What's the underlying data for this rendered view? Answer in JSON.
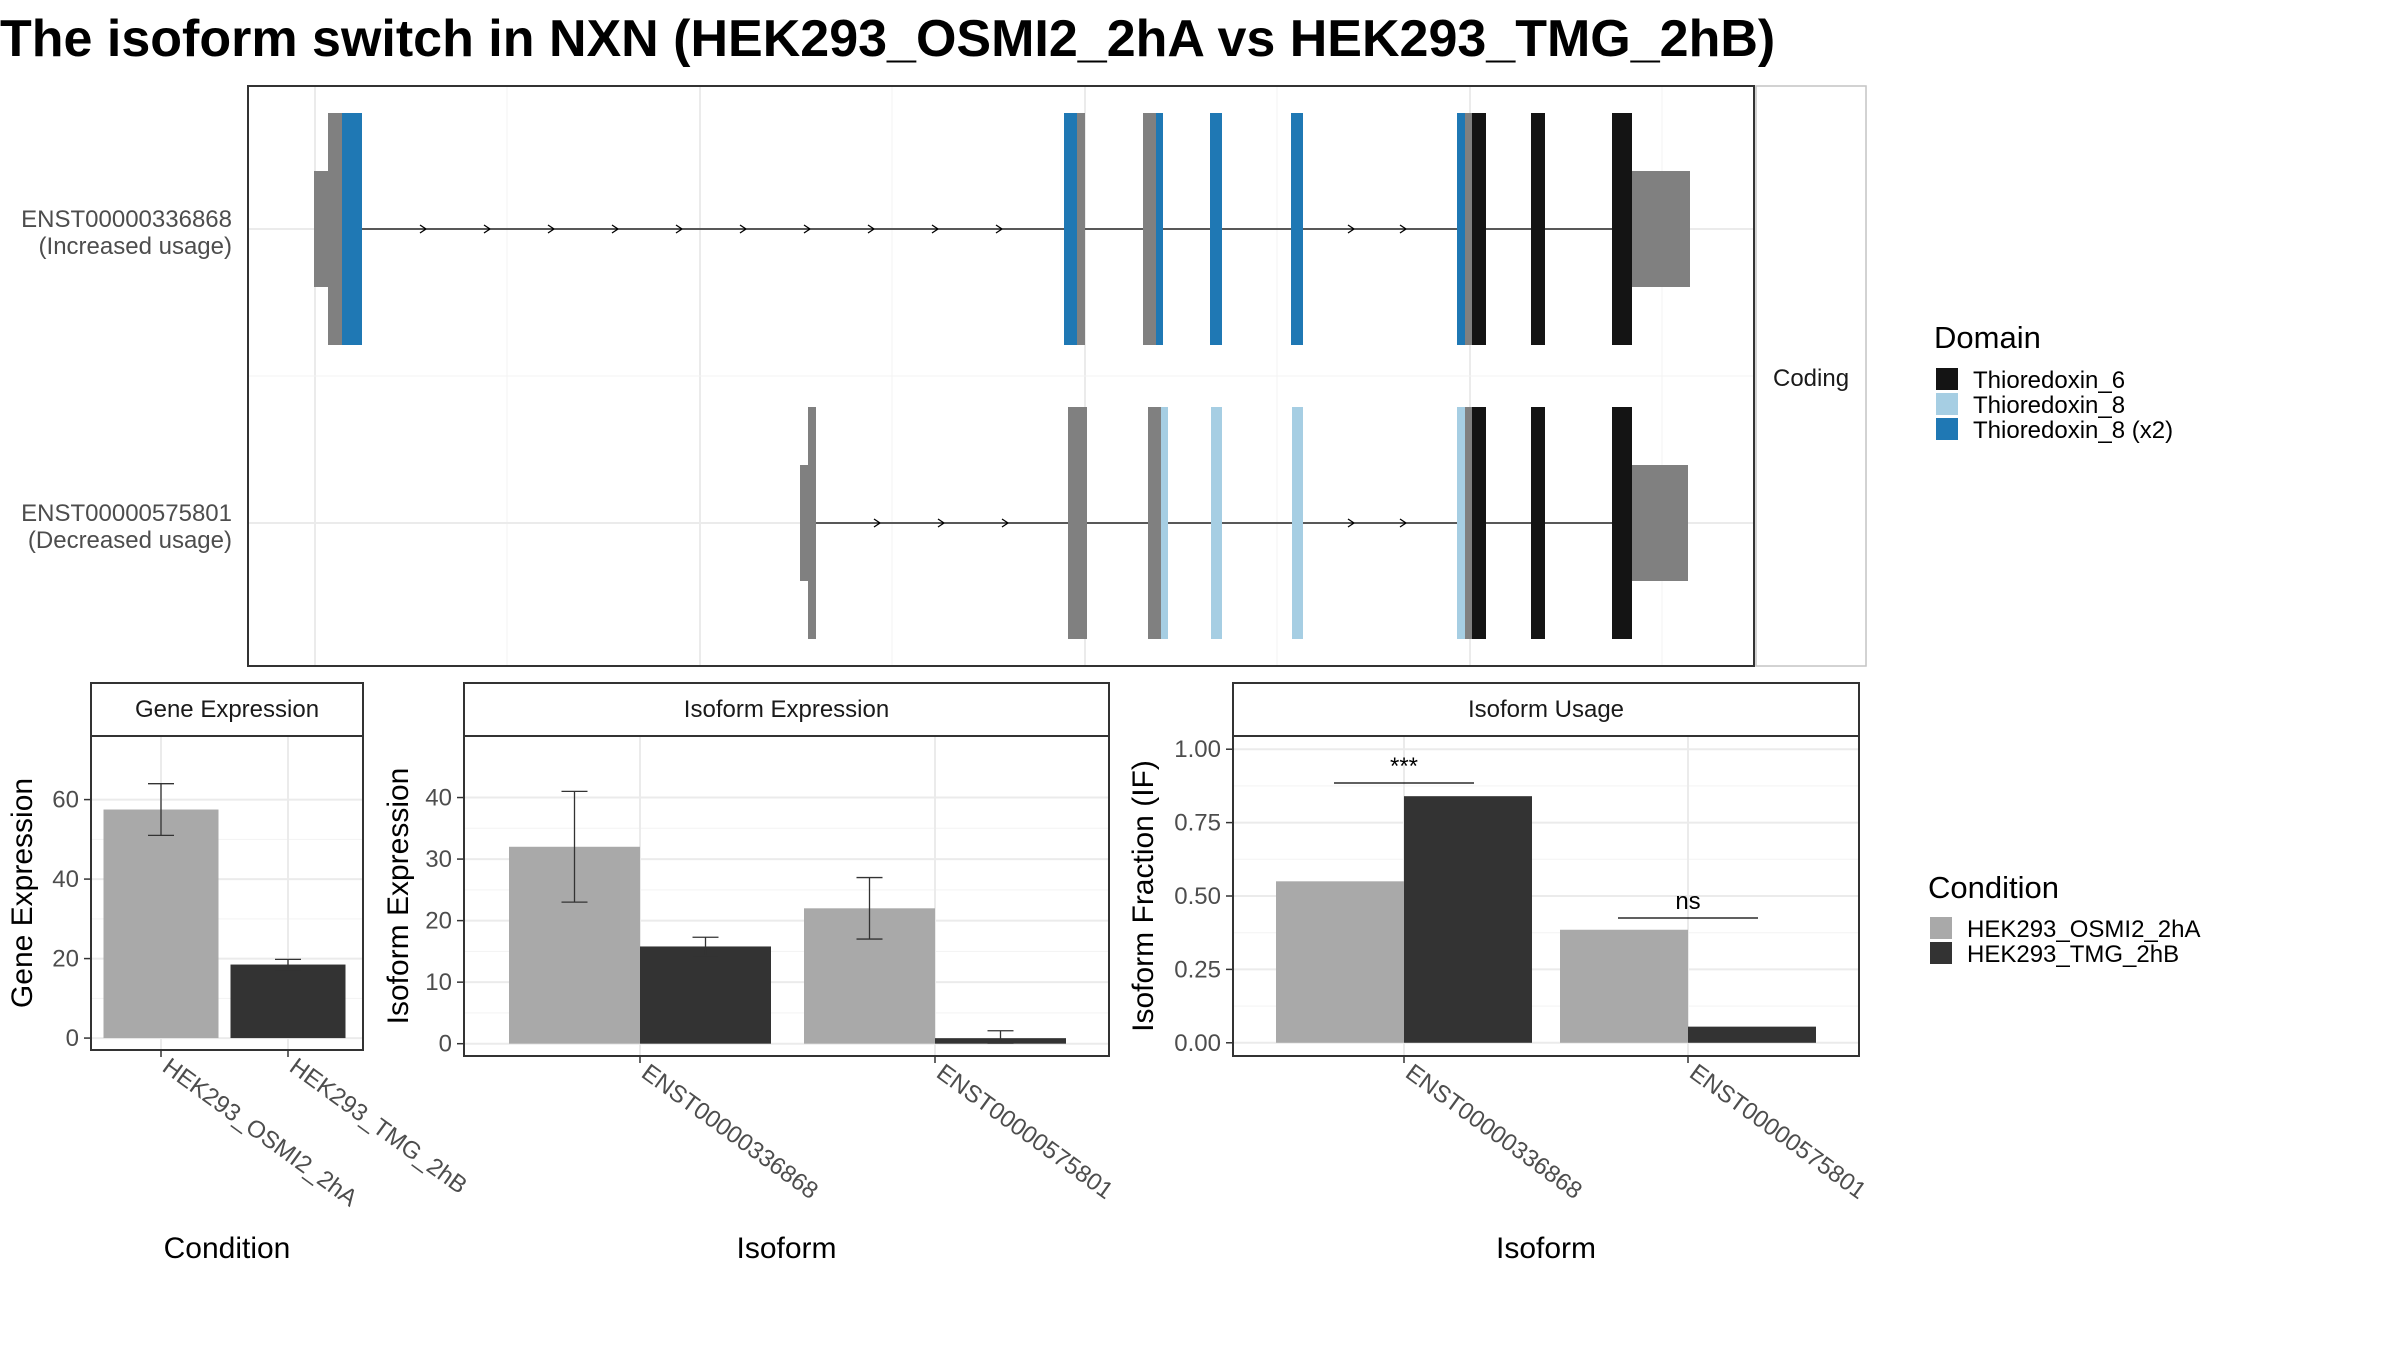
{
  "chart_data": [
    {
      "type": "isoform-structure",
      "title": "The isoform switch in NXN (HEK293_OSMI2_2hA vs HEK293_TMG_2hB)",
      "strip_label": "Coding",
      "rows": [
        {
          "id": "ENST00000336868",
          "label": "(Increased usage)"
        },
        {
          "id": "ENST00000575801",
          "label": "(Decreased usage)"
        }
      ],
      "legend": {
        "title": "Domain",
        "entries": [
          {
            "name": "Thioredoxin_6",
            "color": "#141414"
          },
          {
            "name": "Thioredoxin_8",
            "color": "#a6cee3"
          },
          {
            "name": "Thioredoxin_8 (x2)",
            "color": "#1f78b4"
          }
        ]
      },
      "utr_color": "#808080"
    },
    {
      "type": "bar",
      "title": "Gene Expression",
      "categories": [
        "HEK293_OSMI2_2hA",
        "HEK293_TMG_2hB"
      ],
      "values": [
        57.5,
        18.5
      ],
      "errors": [
        [
          51,
          64
        ],
        [
          17.2,
          19.8
        ]
      ],
      "colors": [
        "#a9a9a9",
        "#333333"
      ],
      "xlabel": "Condition",
      "ylabel": "Gene Expression",
      "ylim": [
        -3,
        76
      ],
      "yticks": [
        "0",
        "20",
        "40",
        "60"
      ]
    },
    {
      "type": "bar",
      "title": "Isoform Expression",
      "categories": [
        "ENST00000336868",
        "ENST00000575801"
      ],
      "series": [
        {
          "name": "HEK293_OSMI2_2hA",
          "values": [
            32,
            22
          ],
          "errors": [
            [
              23,
              41
            ],
            [
              17,
              27
            ]
          ]
        },
        {
          "name": "HEK293_TMG_2hB",
          "values": [
            15.8,
            0.9
          ],
          "errors": [
            [
              14.3,
              17.3
            ],
            [
              0.1,
              2.1
            ]
          ]
        }
      ],
      "xlabel": "Isoform",
      "ylabel": "Isoform Expression",
      "ylim": [
        -2,
        50
      ],
      "yticks": [
        "0",
        "10",
        "20",
        "30",
        "40"
      ]
    },
    {
      "type": "bar",
      "title": "Isoform Usage",
      "categories": [
        "ENST00000336868",
        "ENST00000575801"
      ],
      "series": [
        {
          "name": "HEK293_OSMI2_2hA",
          "values": [
            0.55,
            0.385
          ]
        },
        {
          "name": "HEK293_TMG_2hB",
          "values": [
            0.84,
            0.055
          ]
        }
      ],
      "significance": [
        {
          "label": "***",
          "y": 0.885
        },
        {
          "label": "ns",
          "y": 0.425
        }
      ],
      "xlabel": "Isoform",
      "ylabel": "Isoform Fraction (IF)",
      "ylim": [
        -0.045,
        1.045
      ],
      "yticks": [
        "0.00",
        "0.25",
        "0.50",
        "0.75",
        "1.00"
      ]
    }
  ],
  "condition_legend": {
    "title": "Condition",
    "entries": [
      {
        "name": "HEK293_OSMI2_2hA",
        "color": "#a9a9a9"
      },
      {
        "name": "HEK293_TMG_2hB",
        "color": "#333333"
      }
    ]
  }
}
